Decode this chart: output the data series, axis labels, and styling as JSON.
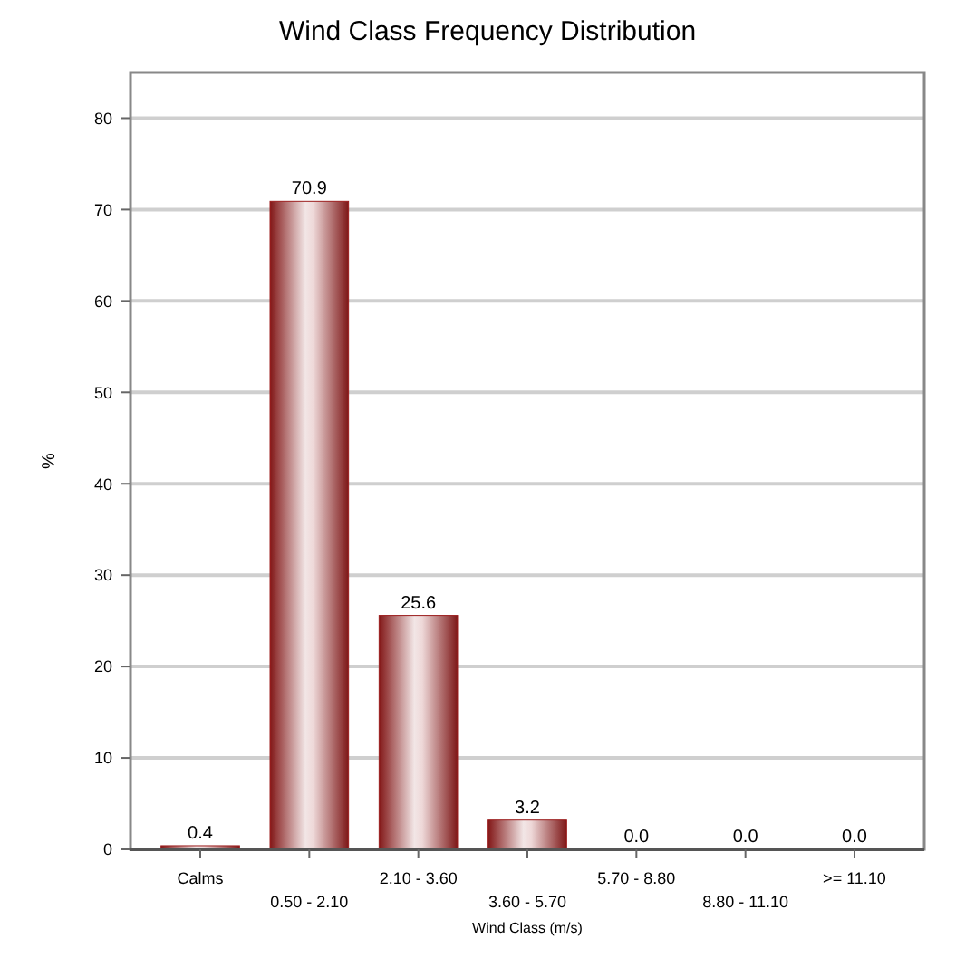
{
  "chart_data": {
    "type": "bar",
    "title": "Wind Class Frequency Distribution",
    "xlabel": "Wind Class (m/s)",
    "ylabel": "%",
    "categories": [
      "Calms",
      "0.50 - 2.10",
      "2.10 - 3.60",
      "3.60 - 5.70",
      "5.70 - 8.80",
      "8.80 - 11.10",
      ">= 11.10"
    ],
    "values": [
      0.4,
      70.9,
      25.6,
      3.2,
      0.0,
      0.0,
      0.0
    ],
    "value_labels": [
      "0.4",
      "70.9",
      "25.6",
      "3.2",
      "0.0",
      "0.0",
      "0.0"
    ],
    "color": "#9b1c1c",
    "ylim": [
      0,
      85
    ],
    "yticks": [
      0,
      10,
      20,
      30,
      40,
      50,
      60,
      70,
      80
    ],
    "grid": "y"
  }
}
